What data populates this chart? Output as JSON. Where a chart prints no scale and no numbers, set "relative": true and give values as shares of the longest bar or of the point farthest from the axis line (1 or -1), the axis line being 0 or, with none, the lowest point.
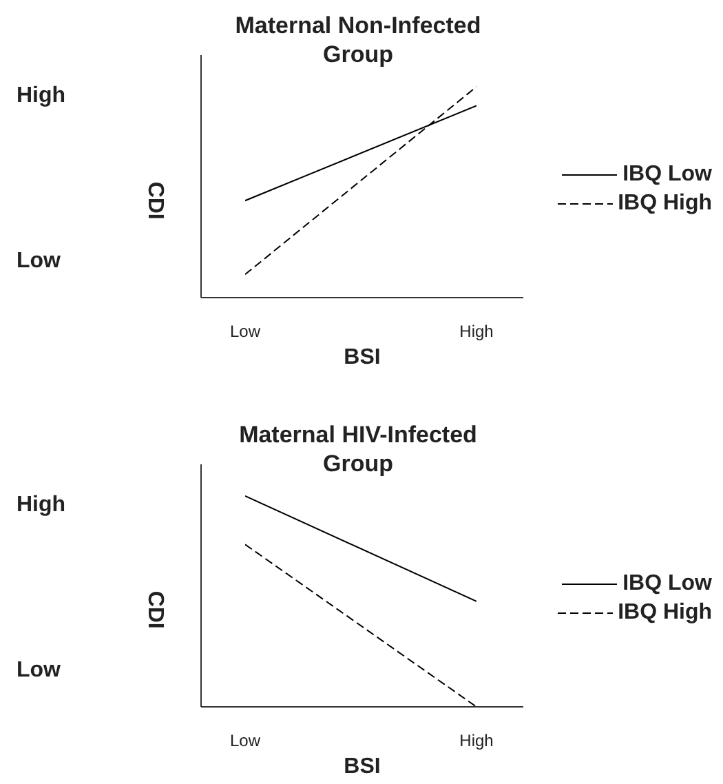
{
  "chart_data": [
    {
      "type": "line",
      "title": "Maternal Non-Infected Group",
      "xlabel": "BSI",
      "ylabel": "CDI",
      "categories": [
        "Low",
        "High"
      ],
      "y_categories": [
        "High",
        "Low"
      ],
      "relative": true,
      "legend": "right",
      "series": [
        {
          "name": "IBQ Low",
          "color": "#000000",
          "line_style": "solid",
          "values": [
            0.46,
            0.91
          ]
        },
        {
          "name": "IBQ High",
          "color": "#000000",
          "line_style": "dashed",
          "values": [
            0.11,
            1
          ]
        }
      ]
    },
    {
      "type": "line",
      "title": "Maternal HIV-Infected Group",
      "xlabel": "BSI",
      "ylabel": "CDI",
      "categories": [
        "Low",
        "High"
      ],
      "y_categories": [
        "High",
        "Low"
      ],
      "relative": true,
      "legend": "right",
      "series": [
        {
          "name": "IBQ Low",
          "color": "#000000",
          "line_style": "solid",
          "values": [
            1,
            0.5
          ]
        },
        {
          "name": "IBQ High",
          "color": "#000000",
          "line_style": "dashed",
          "values": [
            0.77,
            0
          ]
        }
      ]
    }
  ]
}
